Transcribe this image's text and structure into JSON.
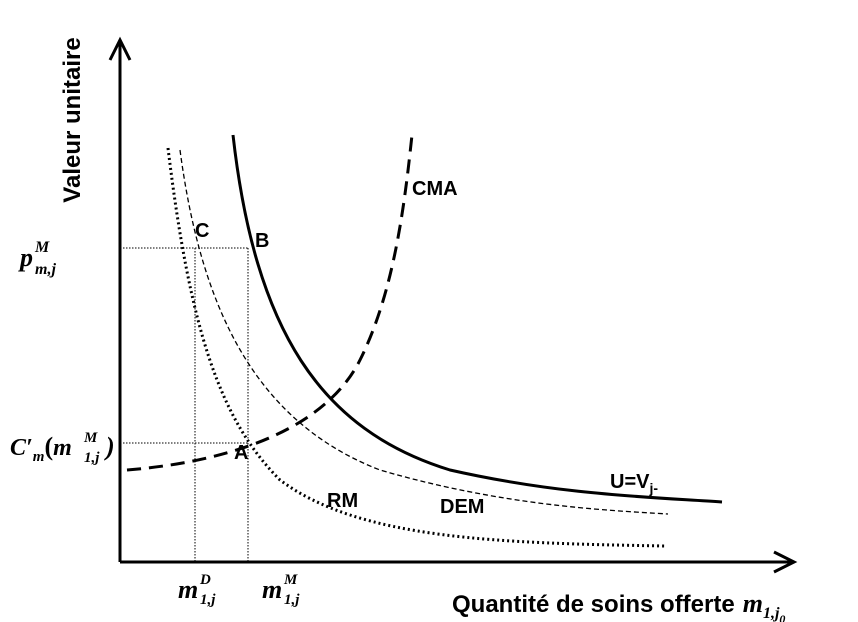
{
  "axes": {
    "y_label": "Valeur unitaire",
    "x_label": {
      "text": "Quantité de soins offerte",
      "var": "m",
      "sub": "1,j",
      "sub_index": "0"
    }
  },
  "y_ticks": {
    "price": {
      "var": "p",
      "sup": "M",
      "sub": "m,j"
    },
    "marginal_cost": {
      "var": "C′",
      "sub": "m",
      "open": "(",
      "inner_var": "m",
      "inner_sup": "M",
      "inner_sub": "1,j",
      "close": ")"
    }
  },
  "x_ticks": {
    "demand": {
      "var": "m",
      "sup": "D",
      "sub": "1,j"
    },
    "market": {
      "var": "m",
      "sup": "M",
      "sub": "1,j"
    }
  },
  "points": [
    "C",
    "B",
    "A"
  ],
  "curves": {
    "cma": "CMA",
    "utility": {
      "text": "U=V",
      "sub": "j-"
    },
    "rm": "RM",
    "dem": "DEM"
  }
}
